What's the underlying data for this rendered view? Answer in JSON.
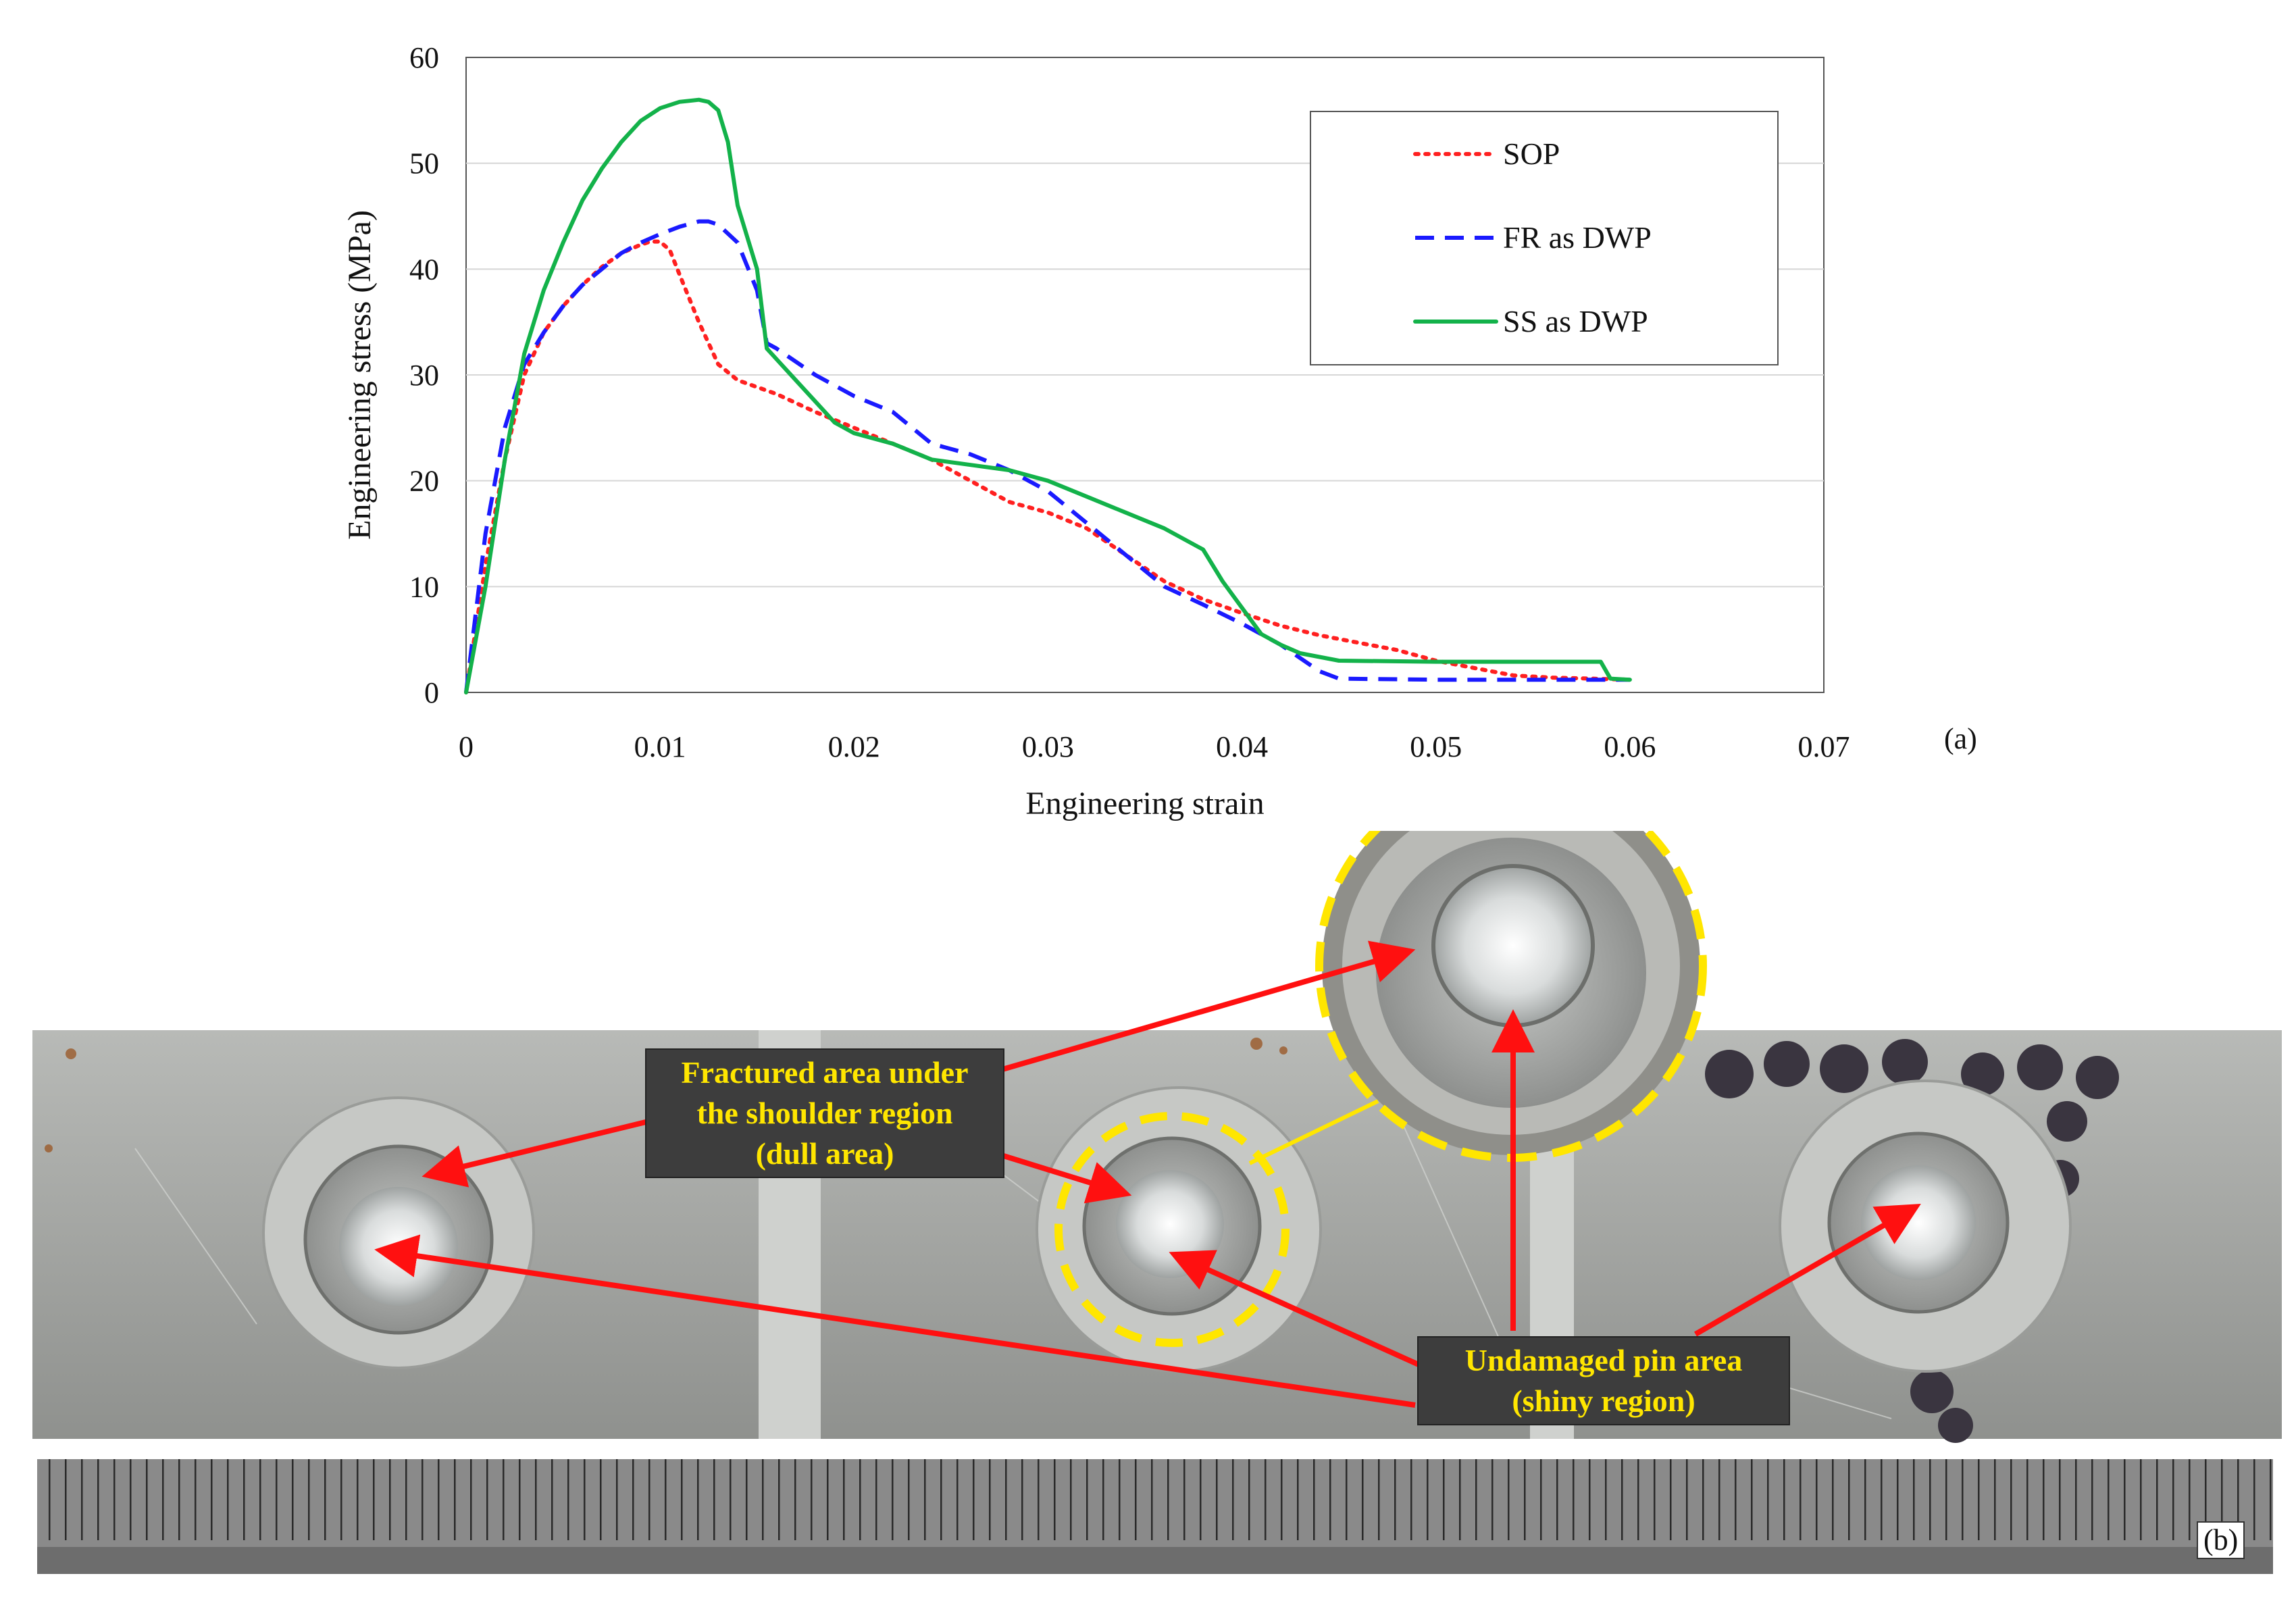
{
  "chart_data": {
    "type": "line",
    "xlabel": "Engineering strain",
    "ylabel": "Engineering stress (MPa)",
    "xlim": [
      0,
      0.07
    ],
    "ylim": [
      0,
      60
    ],
    "xticks": [
      "0",
      "0.01",
      "0.02",
      "0.03",
      "0.04",
      "0.05",
      "0.06",
      "0.07"
    ],
    "yticks": [
      "0",
      "10",
      "20",
      "30",
      "40",
      "50",
      "60"
    ],
    "grid": "horizontal",
    "legend_position": "top-right",
    "series": [
      {
        "name": "SOP",
        "color": "#ff2020",
        "style": "dotted",
        "x": [
          0,
          0.001,
          0.002,
          0.003,
          0.004,
          0.005,
          0.006,
          0.007,
          0.008,
          0.009,
          0.0095,
          0.01,
          0.0105,
          0.011,
          0.012,
          0.013,
          0.014,
          0.016,
          0.018,
          0.02,
          0.022,
          0.024,
          0.026,
          0.028,
          0.03,
          0.032,
          0.034,
          0.036,
          0.038,
          0.04,
          0.042,
          0.044,
          0.046,
          0.048,
          0.05,
          0.052,
          0.054,
          0.056,
          0.058,
          0.06
        ],
        "y": [
          0,
          12,
          22,
          30,
          34,
          36.5,
          38.5,
          40.2,
          41.5,
          42.3,
          42.6,
          42.6,
          41.8,
          39.5,
          35,
          31,
          29.5,
          28.2,
          26.5,
          25,
          23.5,
          22,
          20,
          18,
          17,
          15.5,
          13,
          10.5,
          8.8,
          7.5,
          6.3,
          5.4,
          4.7,
          4.0,
          3.0,
          2.3,
          1.6,
          1.4,
          1.3,
          1.2
        ]
      },
      {
        "name": "FR as DWP",
        "color": "#1a1aff",
        "style": "dashed",
        "x": [
          0,
          0.001,
          0.002,
          0.003,
          0.004,
          0.005,
          0.006,
          0.007,
          0.008,
          0.009,
          0.01,
          0.011,
          0.012,
          0.0125,
          0.013,
          0.014,
          0.015,
          0.0155,
          0.016,
          0.018,
          0.02,
          0.022,
          0.024,
          0.026,
          0.028,
          0.03,
          0.032,
          0.034,
          0.036,
          0.038,
          0.04,
          0.042,
          0.044,
          0.045,
          0.05,
          0.055,
          0.06
        ],
        "y": [
          0,
          15,
          25,
          31,
          34,
          36.5,
          38.5,
          40,
          41.5,
          42.5,
          43.3,
          44,
          44.5,
          44.5,
          44.2,
          42.5,
          38,
          33,
          32.5,
          30,
          28,
          26.5,
          23.5,
          22.5,
          21,
          19,
          16,
          13,
          10,
          8.3,
          6.5,
          4.5,
          2,
          1.3,
          1.2,
          1.2,
          1.2
        ]
      },
      {
        "name": "SS as DWP",
        "color": "#13b24a",
        "style": "solid",
        "x": [
          0,
          0.001,
          0.002,
          0.003,
          0.004,
          0.005,
          0.006,
          0.007,
          0.008,
          0.009,
          0.01,
          0.011,
          0.012,
          0.0125,
          0.013,
          0.0135,
          0.014,
          0.015,
          0.0155,
          0.016,
          0.017,
          0.018,
          0.019,
          0.02,
          0.022,
          0.024,
          0.026,
          0.028,
          0.03,
          0.032,
          0.034,
          0.036,
          0.038,
          0.039,
          0.04,
          0.041,
          0.042,
          0.043,
          0.045,
          0.05,
          0.055,
          0.058,
          0.0585,
          0.059,
          0.06
        ],
        "y": [
          0,
          10,
          22,
          32,
          38,
          42.5,
          46.5,
          49.5,
          52,
          54,
          55.2,
          55.8,
          56,
          55.8,
          55,
          52,
          46,
          40,
          32.5,
          31.5,
          29.5,
          27.5,
          25.5,
          24.5,
          23.5,
          22,
          21.5,
          21,
          20,
          18.5,
          17,
          15.5,
          13.5,
          10.5,
          8,
          5.5,
          4.5,
          3.7,
          3.0,
          2.9,
          2.9,
          2.9,
          2.9,
          1.3,
          1.2
        ]
      }
    ]
  },
  "panel_a_tag": "(a)",
  "panel_b_tag": "(b)",
  "callouts": {
    "fracture": {
      "line1": "Fractured area under",
      "line2": "the shoulder region",
      "line3": "(dull area)"
    },
    "pin": {
      "line1": "Undamaged pin area",
      "line2": "(shiny region)"
    }
  },
  "colors": {
    "arrow": "#ff1010",
    "highlight_circle": "#ffe600",
    "callout_bg": "#3d3d3d",
    "callout_text": "#ffe600",
    "plate": "#a9aba8",
    "ruler": "#7a7a7a"
  }
}
